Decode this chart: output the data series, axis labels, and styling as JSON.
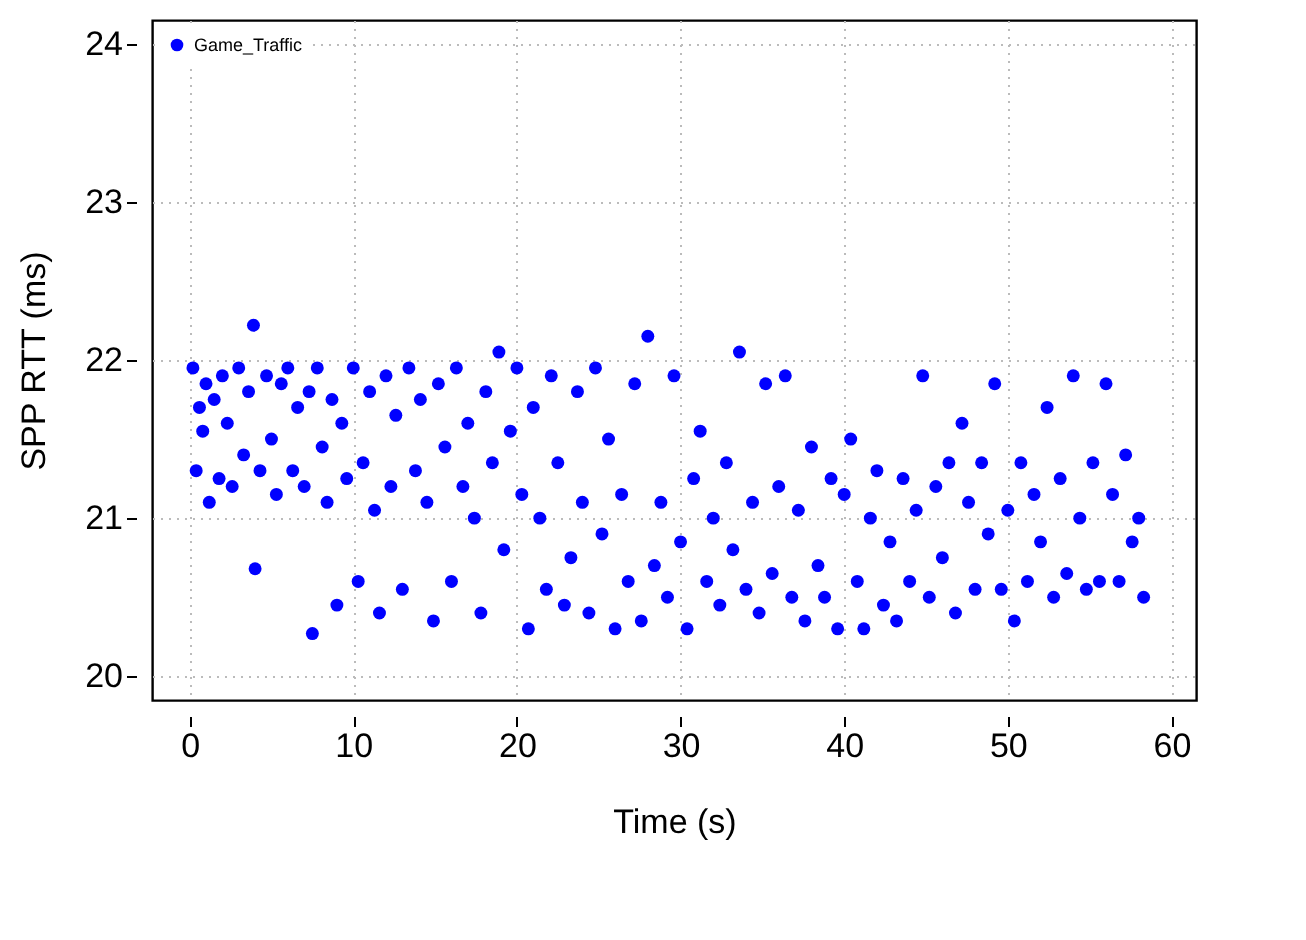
{
  "chart_data": {
    "type": "scatter",
    "xlabel": "Time (s)",
    "ylabel": "SPP RTT (ms)",
    "xlim": [
      -2.3,
      61.5
    ],
    "ylim": [
      19.85,
      24.15
    ],
    "xticks": [
      0,
      10,
      20,
      30,
      40,
      50,
      60
    ],
    "yticks": [
      20,
      21,
      22,
      23,
      24
    ],
    "grid": true,
    "legend": "top left",
    "marker": "circle",
    "series": [
      {
        "name": "Game_Traffic",
        "color": "#0000ff",
        "x": [
          0.2,
          0.4,
          0.6,
          0.8,
          1.0,
          1.2,
          1.5,
          1.8,
          2.0,
          2.3,
          2.6,
          3.0,
          3.3,
          3.6,
          3.9,
          4.0,
          4.3,
          4.7,
          5.0,
          5.3,
          5.6,
          6.0,
          6.3,
          6.6,
          7.0,
          7.3,
          7.5,
          7.8,
          8.1,
          8.4,
          8.7,
          9.0,
          9.3,
          9.6,
          10.0,
          10.3,
          10.6,
          11.0,
          11.3,
          11.6,
          12.0,
          12.3,
          12.6,
          13.0,
          13.4,
          13.8,
          14.1,
          14.5,
          14.9,
          15.2,
          15.6,
          16.0,
          16.3,
          16.7,
          17.0,
          17.4,
          17.8,
          18.1,
          18.5,
          18.9,
          19.2,
          19.6,
          20.0,
          20.3,
          20.7,
          21.0,
          21.4,
          21.8,
          22.1,
          22.5,
          22.9,
          23.3,
          23.7,
          24.0,
          24.4,
          24.8,
          25.2,
          25.6,
          26.0,
          26.4,
          26.8,
          27.2,
          27.6,
          28.0,
          28.4,
          28.8,
          29.2,
          29.6,
          30.0,
          30.4,
          30.8,
          31.2,
          31.6,
          32.0,
          32.4,
          32.8,
          33.2,
          33.6,
          34.0,
          34.4,
          34.8,
          35.2,
          35.6,
          36.0,
          36.4,
          36.8,
          37.2,
          37.6,
          38.0,
          38.4,
          38.8,
          39.2,
          39.6,
          40.0,
          40.4,
          40.8,
          41.2,
          41.6,
          42.0,
          42.4,
          42.8,
          43.2,
          43.6,
          44.0,
          44.4,
          44.8,
          45.2,
          45.6,
          46.0,
          46.4,
          46.8,
          47.2,
          47.6,
          48.0,
          48.4,
          48.8,
          49.2,
          49.6,
          50.0,
          50.4,
          50.8,
          51.2,
          51.6,
          52.0,
          52.4,
          52.8,
          53.2,
          53.6,
          54.0,
          54.4,
          54.8,
          55.2,
          55.6,
          56.0,
          56.4,
          56.8,
          57.2,
          57.6,
          58.0,
          58.3
        ],
        "values": [
          21.95,
          21.3,
          21.7,
          21.55,
          21.85,
          21.1,
          21.75,
          21.25,
          21.9,
          21.6,
          21.2,
          21.95,
          21.4,
          21.8,
          22.22,
          20.68,
          21.3,
          21.9,
          21.5,
          21.15,
          21.85,
          21.95,
          21.3,
          21.7,
          21.2,
          21.8,
          20.27,
          21.95,
          21.45,
          21.1,
          21.75,
          20.45,
          21.6,
          21.25,
          21.95,
          20.6,
          21.35,
          21.8,
          21.05,
          20.4,
          21.9,
          21.2,
          21.65,
          20.55,
          21.95,
          21.3,
          21.75,
          21.1,
          20.35,
          21.85,
          21.45,
          20.6,
          21.95,
          21.2,
          21.6,
          21.0,
          20.4,
          21.8,
          21.35,
          22.05,
          20.8,
          21.55,
          21.95,
          21.15,
          20.3,
          21.7,
          21.0,
          20.55,
          21.9,
          21.35,
          20.45,
          20.75,
          21.8,
          21.1,
          20.4,
          21.95,
          20.9,
          21.5,
          20.3,
          21.15,
          20.6,
          21.85,
          20.35,
          22.15,
          20.7,
          21.1,
          20.5,
          21.9,
          20.85,
          20.3,
          21.25,
          21.55,
          20.6,
          21.0,
          20.45,
          21.35,
          20.8,
          22.05,
          20.55,
          21.1,
          20.4,
          21.85,
          20.65,
          21.2,
          21.9,
          20.5,
          21.05,
          20.35,
          21.45,
          20.7,
          20.5,
          21.25,
          20.3,
          21.15,
          21.5,
          20.6,
          20.3,
          21.0,
          21.3,
          20.45,
          20.85,
          20.35,
          21.25,
          20.6,
          21.05,
          21.9,
          20.5,
          21.2,
          20.75,
          21.35,
          20.4,
          21.6,
          21.1,
          20.55,
          21.35,
          20.9,
          21.85,
          20.55,
          21.05,
          20.35,
          21.35,
          20.6,
          21.15,
          20.85,
          21.7,
          20.5,
          21.25,
          20.65,
          21.9,
          21.0,
          20.55,
          21.35,
          20.6,
          21.85,
          21.15,
          20.6,
          21.4,
          20.85,
          21.0,
          20.5
        ]
      }
    ]
  }
}
